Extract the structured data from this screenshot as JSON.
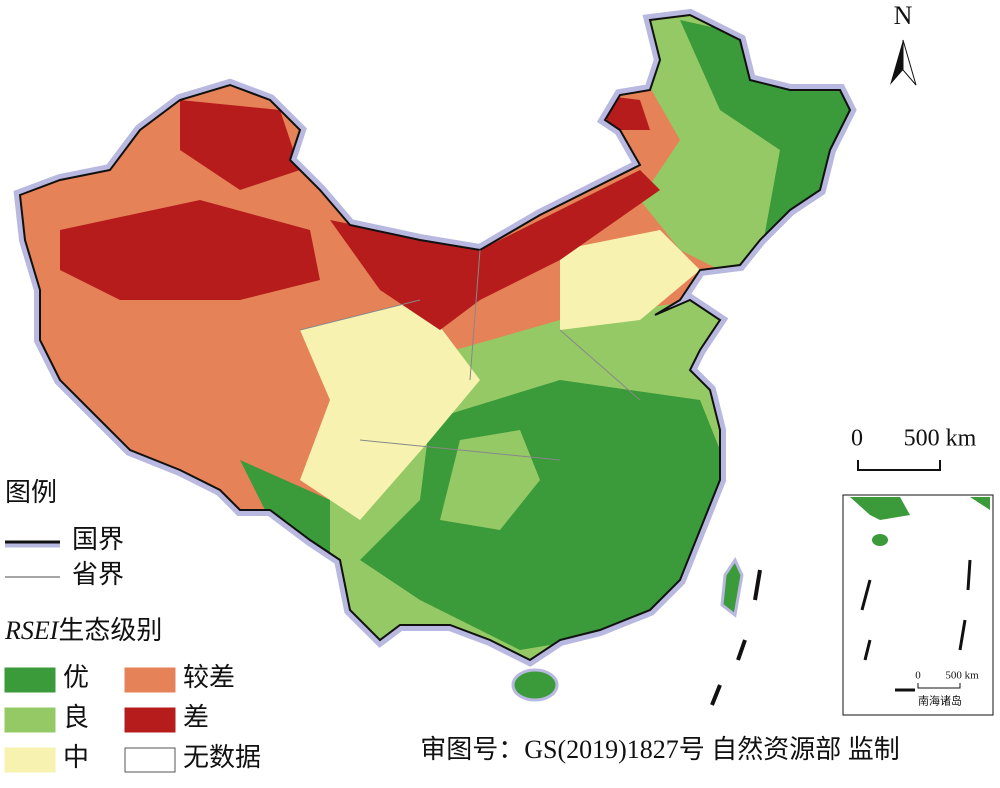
{
  "north": "N",
  "scale_bar": {
    "zero": "0",
    "length": "500 km"
  },
  "legend": {
    "title": "图例",
    "lines": [
      {
        "label": "国界"
      },
      {
        "label": "省界"
      }
    ],
    "rsei_title": {
      "italic": "RSEI",
      "text": "生态级别"
    },
    "classes": [
      {
        "label": "优",
        "color": "#3b9a3a"
      },
      {
        "label": "较差",
        "color": "#e58257"
      },
      {
        "label": "良",
        "color": "#94c965"
      },
      {
        "label": "差",
        "color": "#b71c1c"
      },
      {
        "label": "中",
        "color": "#f7f2b0"
      },
      {
        "label": "无数据",
        "color": "#ffffff"
      }
    ]
  },
  "inset": {
    "zero": "0",
    "length": "500 km",
    "label": "南海诸岛"
  },
  "approval": "审图号：GS(2019)1827号 自然资源部 监制"
}
